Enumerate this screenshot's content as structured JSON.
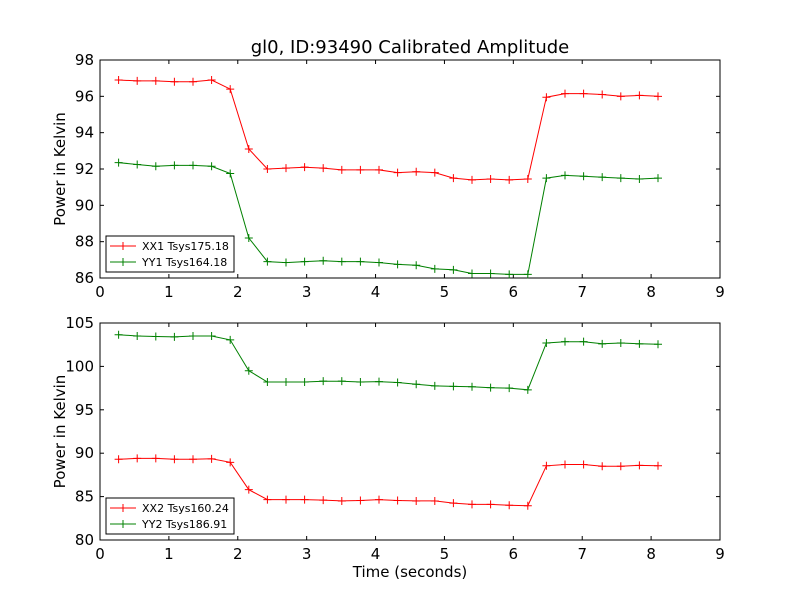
{
  "figure": {
    "title": "gl0, ID:93490 Calibrated Amplitude"
  },
  "chart_data": [
    {
      "type": "line",
      "title": "gl0, ID:93490 Calibrated Amplitude",
      "xlabel": "",
      "ylabel": "Power in Kelvin",
      "xlim": [
        0,
        9
      ],
      "ylim": [
        86,
        98
      ],
      "xticks": [
        0,
        1,
        2,
        3,
        4,
        5,
        6,
        7,
        8,
        9
      ],
      "yticks": [
        86,
        88,
        90,
        92,
        94,
        96,
        98
      ],
      "grid": false,
      "legend_position": "lower-left",
      "x": [
        0.27,
        0.54,
        0.81,
        1.08,
        1.35,
        1.62,
        1.89,
        2.16,
        2.43,
        2.7,
        2.97,
        3.24,
        3.51,
        3.78,
        4.05,
        4.32,
        4.59,
        4.86,
        5.13,
        5.4,
        5.67,
        5.94,
        6.21,
        6.48,
        6.75,
        7.02,
        7.29,
        7.56,
        7.83,
        8.1
      ],
      "series": [
        {
          "name": "XX1 Tsys175.18",
          "color": "#ff0000",
          "values": [
            96.9,
            96.85,
            96.85,
            96.8,
            96.8,
            96.9,
            96.4,
            93.1,
            92.0,
            92.05,
            92.1,
            92.05,
            91.95,
            91.95,
            91.95,
            91.8,
            91.85,
            91.8,
            91.5,
            91.4,
            91.45,
            91.4,
            91.45,
            95.95,
            96.15,
            96.15,
            96.1,
            96.0,
            96.05,
            96.0
          ]
        },
        {
          "name": "YY1 Tsys164.18",
          "color": "#008000",
          "values": [
            92.35,
            92.25,
            92.15,
            92.2,
            92.2,
            92.15,
            91.75,
            88.2,
            86.9,
            86.85,
            86.9,
            86.95,
            86.9,
            86.9,
            86.85,
            86.75,
            86.7,
            86.5,
            86.45,
            86.25,
            86.25,
            86.2,
            86.2,
            91.5,
            91.65,
            91.6,
            91.55,
            91.5,
            91.45,
            91.5
          ]
        }
      ]
    },
    {
      "type": "line",
      "title": "",
      "xlabel": "Time (seconds)",
      "ylabel": "Power in Kelvin",
      "xlim": [
        0,
        9
      ],
      "ylim": [
        80,
        105
      ],
      "xticks": [
        0,
        1,
        2,
        3,
        4,
        5,
        6,
        7,
        8,
        9
      ],
      "yticks": [
        80,
        85,
        90,
        95,
        100,
        105
      ],
      "grid": false,
      "legend_position": "lower-left",
      "x": [
        0.27,
        0.54,
        0.81,
        1.08,
        1.35,
        1.62,
        1.89,
        2.16,
        2.43,
        2.7,
        2.97,
        3.24,
        3.51,
        3.78,
        4.05,
        4.32,
        4.59,
        4.86,
        5.13,
        5.4,
        5.67,
        5.94,
        6.21,
        6.48,
        6.75,
        7.02,
        7.29,
        7.56,
        7.83,
        8.1
      ],
      "series": [
        {
          "name": "XX2 Tsys160.24",
          "color": "#ff0000",
          "values": [
            89.3,
            89.4,
            89.4,
            89.3,
            89.3,
            89.35,
            88.95,
            85.8,
            84.65,
            84.65,
            84.65,
            84.6,
            84.5,
            84.55,
            84.65,
            84.55,
            84.5,
            84.5,
            84.25,
            84.1,
            84.1,
            84.0,
            83.95,
            88.55,
            88.7,
            88.7,
            88.5,
            88.5,
            88.6,
            88.55
          ]
        },
        {
          "name": "YY2 Tsys186.91",
          "color": "#008000",
          "values": [
            103.65,
            103.5,
            103.45,
            103.4,
            103.5,
            103.5,
            103.05,
            99.5,
            98.2,
            98.2,
            98.2,
            98.3,
            98.3,
            98.2,
            98.25,
            98.15,
            97.95,
            97.75,
            97.7,
            97.65,
            97.55,
            97.5,
            97.3,
            102.7,
            102.85,
            102.85,
            102.6,
            102.7,
            102.6,
            102.55
          ]
        }
      ]
    }
  ]
}
